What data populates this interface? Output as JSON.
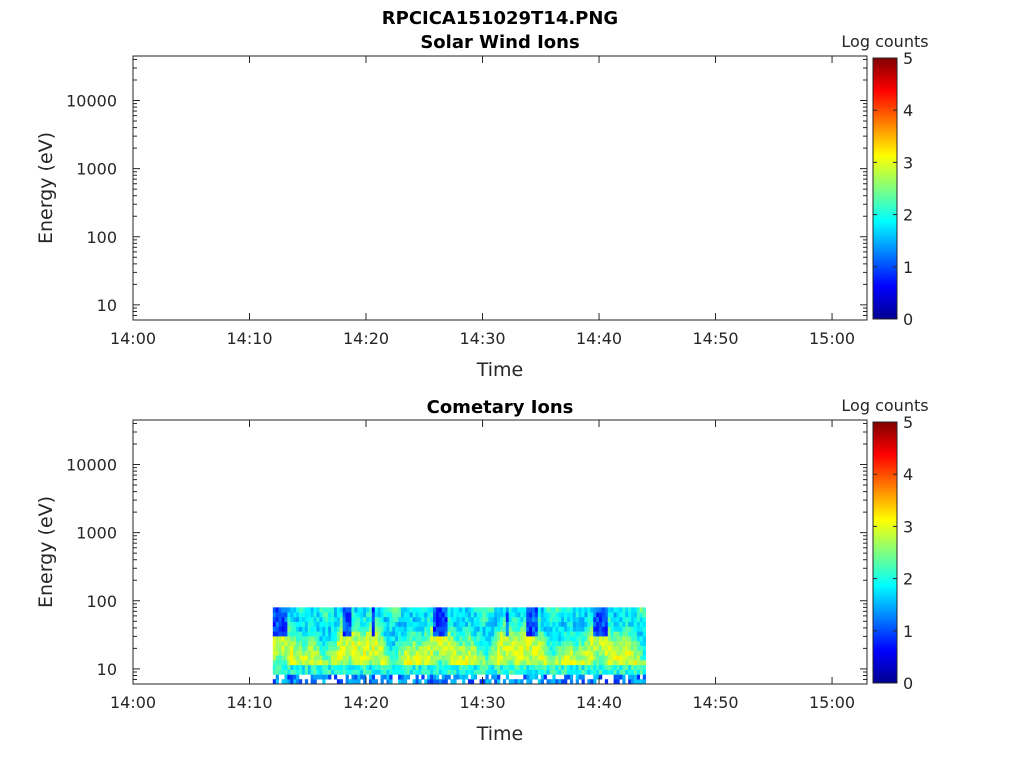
{
  "figure_title": "RPCICA151029T14.PNG",
  "chart_data": [
    {
      "type": "heatmap",
      "title": "Solar Wind Ions",
      "xlabel": "Time",
      "ylabel": "Energy (eV)",
      "xticks": [
        "14:00",
        "14:10",
        "14:20",
        "14:30",
        "14:40",
        "14:50",
        "15:00"
      ],
      "xlim_minutes": [
        0,
        63
      ],
      "yticks": [
        "10",
        "100",
        "1000",
        "10000"
      ],
      "ylim": [
        6,
        45000
      ],
      "yscale": "log",
      "colorbar": {
        "label": "Log counts",
        "ticks": [
          "0",
          "1",
          "2",
          "3",
          "4",
          "5"
        ],
        "range": [
          0,
          5
        ],
        "colormap": "jet"
      },
      "data_present": false
    },
    {
      "type": "heatmap",
      "title": "Cometary Ions",
      "xlabel": "Time",
      "ylabel": "Energy (eV)",
      "xticks": [
        "14:00",
        "14:10",
        "14:20",
        "14:30",
        "14:40",
        "14:50",
        "15:00"
      ],
      "xlim_minutes": [
        0,
        63
      ],
      "yticks": [
        "10",
        "100",
        "1000",
        "10000"
      ],
      "ylim": [
        6,
        45000
      ],
      "yscale": "log",
      "colorbar": {
        "label": "Log counts",
        "ticks": [
          "0",
          "1",
          "2",
          "3",
          "4",
          "5"
        ],
        "range": [
          0,
          5
        ],
        "colormap": "jet"
      },
      "data_present": true,
      "data_time_range": [
        "14:12",
        "14:44"
      ],
      "data_energy_range_ev": [
        6,
        80
      ]
    }
  ]
}
